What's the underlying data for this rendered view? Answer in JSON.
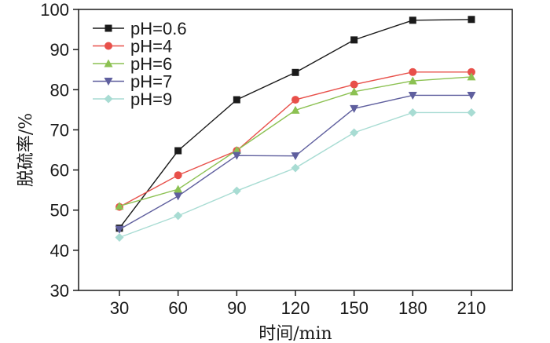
{
  "chart_data": {
    "type": "line",
    "title": "",
    "xlabel": "时间/min",
    "ylabel": "脱硫率/%",
    "categories": [
      30,
      60,
      90,
      120,
      150,
      180,
      210
    ],
    "y_ticks": [
      30,
      40,
      50,
      60,
      70,
      80,
      90,
      100
    ],
    "ylim": [
      30,
      100
    ],
    "grid": false,
    "legend_position": "top-left",
    "series": [
      {
        "name": "pH=0.6",
        "color": "#1a1a1a",
        "marker": "square",
        "values": [
          45.5,
          64.8,
          77.5,
          84.3,
          92.4,
          97.3,
          97.5
        ]
      },
      {
        "name": "pH=4",
        "color": "#e8504a",
        "marker": "circle",
        "values": [
          50.8,
          58.7,
          64.8,
          77.5,
          81.3,
          84.4,
          84.4
        ]
      },
      {
        "name": "pH=6",
        "color": "#8cc152",
        "marker": "triangle-up",
        "values": [
          51.0,
          55.2,
          64.9,
          74.9,
          79.5,
          82.2,
          83.2
        ]
      },
      {
        "name": "pH=7",
        "color": "#5f5f9e",
        "marker": "triangle-down",
        "values": [
          45.2,
          53.5,
          63.6,
          63.5,
          75.3,
          78.6,
          78.6
        ]
      },
      {
        "name": "pH=9",
        "color": "#a8dcd3",
        "marker": "diamond",
        "values": [
          43.2,
          48.6,
          54.8,
          60.5,
          69.3,
          74.3,
          74.3
        ]
      }
    ]
  }
}
